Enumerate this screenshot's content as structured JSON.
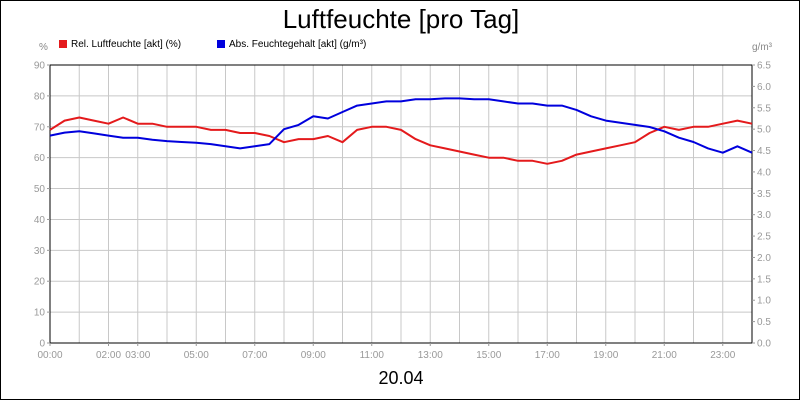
{
  "chart_data": {
    "type": "line",
    "title": "Luftfeuchte [pro Tag]",
    "date_label": "20.04",
    "left_unit": "%",
    "right_unit": "g/m³",
    "x_ticks": [
      "00:00",
      "02:00",
      "03:00",
      "05:00",
      "07:00",
      "09:00",
      "11:00",
      "13:00",
      "15:00",
      "17:00",
      "19:00",
      "21:00",
      "23:00"
    ],
    "x_tick_hours": [
      0,
      2,
      3,
      5,
      7,
      9,
      11,
      13,
      15,
      17,
      19,
      21,
      23
    ],
    "x_range_hours": [
      0,
      24
    ],
    "grid": true,
    "ylim_left": [
      0,
      90
    ],
    "yticks_left": [
      "0",
      "10",
      "20",
      "30",
      "40",
      "50",
      "60",
      "70",
      "80",
      "90"
    ],
    "ylim_right": [
      0,
      6.5
    ],
    "yticks_right": [
      "0.0",
      "0.5",
      "1.0",
      "1.5",
      "2.0",
      "2.5",
      "3.0",
      "3.5",
      "4.0",
      "4.5",
      "5.0",
      "5.5",
      "6.0",
      "6.5"
    ],
    "legend_position": "top-left",
    "series": [
      {
        "name": "Rel. Luftfeuchte [akt] (%)",
        "color": "#e41a1c",
        "axis": "left",
        "hours": [
          0,
          0.5,
          1,
          1.5,
          2,
          2.5,
          3,
          3.5,
          4,
          4.5,
          5,
          5.5,
          6,
          6.5,
          7,
          7.5,
          8,
          8.5,
          9,
          9.5,
          10,
          10.5,
          11,
          11.5,
          12,
          12.5,
          13,
          13.5,
          14,
          14.5,
          15,
          15.5,
          16,
          16.5,
          17,
          17.5,
          18,
          18.5,
          19,
          19.5,
          20,
          20.5,
          21,
          21.5,
          22,
          22.5,
          23,
          23.5,
          24
        ],
        "values": [
          69,
          72,
          73,
          72,
          71,
          73,
          71,
          71,
          70,
          70,
          70,
          69,
          69,
          68,
          68,
          67,
          65,
          66,
          66,
          67,
          65,
          69,
          70,
          70,
          69,
          66,
          64,
          63,
          62,
          61,
          60,
          60,
          59,
          59,
          58,
          59,
          61,
          62,
          63,
          64,
          65,
          68,
          70,
          69,
          70,
          70,
          71,
          72,
          71
        ]
      },
      {
        "name": "Abs. Feuchtegehalt [akt] (g/m³)",
        "color": "#0000dd",
        "axis": "right",
        "hours": [
          0,
          0.5,
          1,
          1.5,
          2,
          2.5,
          3,
          3.5,
          4,
          4.5,
          5,
          5.5,
          6,
          6.5,
          7,
          7.5,
          8,
          8.5,
          9,
          9.5,
          10,
          10.5,
          11,
          11.5,
          12,
          12.5,
          13,
          13.5,
          14,
          14.5,
          15,
          15.5,
          16,
          16.5,
          17,
          17.5,
          18,
          18.5,
          19,
          19.5,
          20,
          20.5,
          21,
          21.5,
          22,
          22.5,
          23,
          23.5,
          24
        ],
        "values": [
          4.85,
          4.92,
          4.95,
          4.9,
          4.85,
          4.8,
          4.8,
          4.75,
          4.72,
          4.7,
          4.68,
          4.65,
          4.6,
          4.55,
          4.6,
          4.65,
          5.0,
          5.1,
          5.3,
          5.25,
          5.4,
          5.55,
          5.6,
          5.65,
          5.65,
          5.7,
          5.7,
          5.72,
          5.72,
          5.7,
          5.7,
          5.65,
          5.6,
          5.6,
          5.55,
          5.55,
          5.45,
          5.3,
          5.2,
          5.15,
          5.1,
          5.05,
          4.95,
          4.8,
          4.7,
          4.55,
          4.45,
          4.6,
          4.45
        ]
      }
    ]
  }
}
